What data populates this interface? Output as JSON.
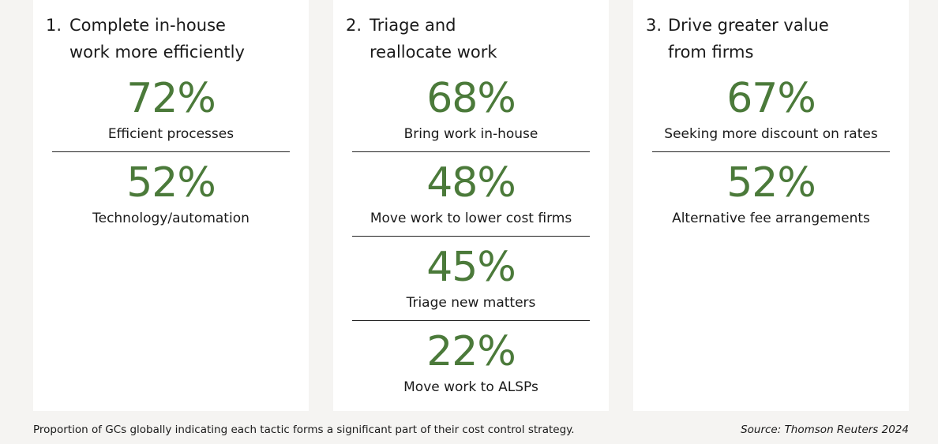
{
  "columns": [
    {
      "number": "1.",
      "title_lines": [
        "Complete in-house",
        "work more efficiently"
      ],
      "items": [
        {
          "value": "72%",
          "label": "Efficient processes"
        },
        {
          "value": "52%",
          "label": "Technology/automation"
        }
      ]
    },
    {
      "number": "2.",
      "title_lines": [
        "Triage and",
        "reallocate work"
      ],
      "items": [
        {
          "value": "68%",
          "label": "Bring work in-house"
        },
        {
          "value": "48%",
          "label": "Move work to lower cost firms"
        },
        {
          "value": "45%",
          "label": "Triage new matters"
        },
        {
          "value": "22%",
          "label": "Move work to ALSPs"
        }
      ]
    },
    {
      "number": "3.",
      "title_lines": [
        "Drive greater value",
        "from firms"
      ],
      "items": [
        {
          "value": "67%",
          "label": "Seeking more discount on rates"
        },
        {
          "value": "52%",
          "label": "Alternative fee arrangements"
        }
      ]
    }
  ],
  "footer": {
    "note": "Proportion of GCs globally indicating each tactic forms a significant part of their cost control strategy.",
    "source": "Source: Thomson Reuters 2024"
  }
}
